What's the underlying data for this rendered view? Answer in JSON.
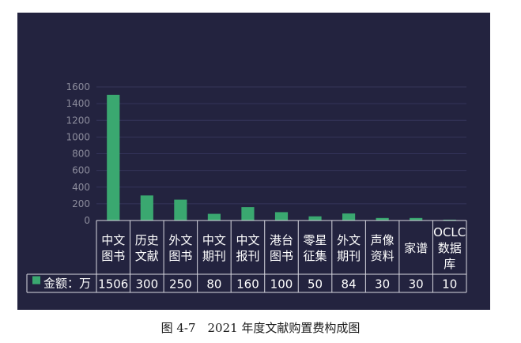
{
  "chart_data": {
    "type": "bar",
    "categories": [
      [
        "中文",
        "图书"
      ],
      [
        "历史",
        "文献"
      ],
      [
        "外文",
        "图书"
      ],
      [
        "中文",
        "期刊"
      ],
      [
        "中文",
        "报刊"
      ],
      [
        "港台",
        "图书"
      ],
      [
        "零星",
        "征集"
      ],
      [
        "外文",
        "期刊"
      ],
      [
        "声像",
        "资料"
      ],
      [
        "家谱"
      ],
      [
        "OCLC",
        "数据",
        "库"
      ]
    ],
    "series": [
      {
        "name": "金额：万",
        "values": [
          1506,
          300,
          250,
          80,
          160,
          100,
          50,
          84,
          30,
          30,
          10
        ]
      }
    ],
    "ylim": [
      0,
      1600
    ],
    "yticks": [
      0,
      200,
      400,
      600,
      800,
      1000,
      1200,
      1400,
      1600
    ],
    "grid": true,
    "legend": "data-table",
    "colors": {
      "background": "#23233f",
      "bar": "#3aa870",
      "grid": "#34345a",
      "axis_text": "#8c8c9c",
      "table_text": "#ffffff",
      "table_border": "#d8d8e0"
    }
  },
  "caption": "图 4-7　2021 年度文献购置费构成图"
}
